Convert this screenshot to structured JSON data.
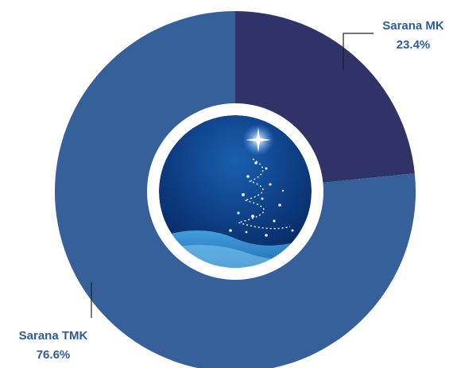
{
  "chart_data": {
    "type": "pie",
    "categories": [
      "Sarana MK",
      "Sarana TMK"
    ],
    "values": [
      23.4,
      76.6
    ],
    "value_labels": [
      "23.4%",
      "76.6%"
    ],
    "colors": [
      "#2f3368",
      "#35609a"
    ]
  }
}
